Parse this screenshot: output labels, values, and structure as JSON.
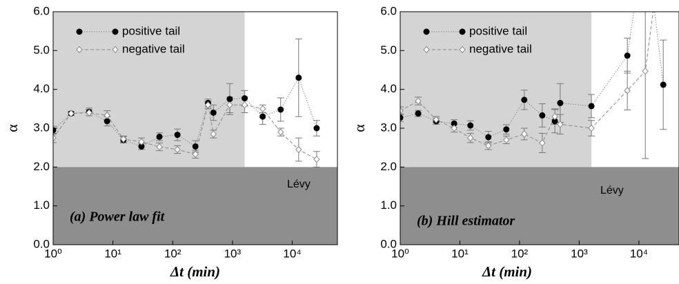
{
  "chart_data": [
    {
      "type": "line",
      "xlabel": "Δt (min)",
      "ylabel": "α",
      "xscale": "log",
      "panel_label": "(a)  Power law fit",
      "region_label": "Lévy",
      "regions": [
        {
          "xlim": [
            1,
            1600
          ],
          "ylim": [
            2,
            6
          ],
          "color": "#d4d4d4"
        },
        {
          "ylim": [
            0,
            2
          ],
          "color": "#8e8e8e"
        }
      ],
      "x": [
        1,
        2,
        4,
        8,
        15,
        30,
        60,
        120,
        240,
        390,
        480,
        900,
        1600,
        3200,
        6400,
        12800,
        25600
      ],
      "series": [
        {
          "name": "positive tail",
          "color": "#000000",
          "marker": "circle",
          "values": [
            2.95,
            3.38,
            3.42,
            3.18,
            2.7,
            2.53,
            2.78,
            2.83,
            2.53,
            3.65,
            3.4,
            3.75,
            3.77,
            3.3,
            3.48,
            4.3,
            3.0
          ],
          "errors": [
            0.1,
            0.05,
            0.1,
            0.12,
            0.08,
            0.08,
            0.1,
            0.15,
            0.15,
            0.1,
            0.2,
            0.4,
            0.2,
            0.2,
            0.3,
            1.0,
            0.2
          ]
        },
        {
          "name": "negative tail",
          "color": "#ffffff",
          "marker": "diamond",
          "values": [
            2.75,
            3.38,
            3.4,
            3.33,
            2.72,
            2.65,
            2.52,
            2.45,
            2.33,
            3.6,
            2.85,
            3.6,
            3.6,
            3.5,
            2.9,
            2.45,
            2.2
          ],
          "errors": [
            0.12,
            0.05,
            0.08,
            0.12,
            0.08,
            0.1,
            0.1,
            0.1,
            0.1,
            0.1,
            0.1,
            0.2,
            0.2,
            0.1,
            0.1,
            0.3,
            0.2
          ]
        }
      ],
      "xlim": [
        1,
        57000
      ],
      "ylim": [
        0,
        6
      ],
      "xticks": [
        {
          "value": 1,
          "label": "10⁰"
        },
        {
          "value": 10,
          "label": "10¹"
        },
        {
          "value": 100,
          "label": "10²"
        },
        {
          "value": 1000,
          "label": "10³"
        },
        {
          "value": 10000,
          "label": "10⁴"
        }
      ],
      "yticks": [
        {
          "value": 0,
          "label": "0.0"
        },
        {
          "value": 1,
          "label": "1.0"
        },
        {
          "value": 2,
          "label": "2.0"
        },
        {
          "value": 3,
          "label": "3.0"
        },
        {
          "value": 4,
          "label": "4.0"
        },
        {
          "value": 5,
          "label": "5.0"
        },
        {
          "value": 6,
          "label": "6.0"
        }
      ],
      "legend": "upper left"
    },
    {
      "type": "line",
      "xlabel": "Δt (min)",
      "ylabel": "α",
      "xscale": "log",
      "panel_label": "(b) Hill estimator",
      "region_label": "Lévy",
      "regions": [
        {
          "xlim": [
            1,
            1600
          ],
          "ylim": [
            2,
            6
          ],
          "color": "#d4d4d4"
        },
        {
          "ylim": [
            0,
            2
          ],
          "color": "#8e8e8e"
        }
      ],
      "x": [
        1,
        2,
        4,
        8,
        15,
        30,
        60,
        120,
        240,
        390,
        480,
        1600,
        6400,
        12800,
        25600
      ],
      "series": [
        {
          "name": "positive tail",
          "color": "#000000",
          "marker": "circle",
          "values": [
            3.27,
            3.38,
            3.18,
            3.12,
            3.07,
            2.77,
            2.97,
            3.73,
            3.33,
            3.18,
            3.65,
            3.57,
            4.87,
            8.0,
            4.12
          ],
          "errors": [
            0.1,
            0.08,
            0.08,
            0.1,
            0.12,
            0.15,
            0.12,
            0.25,
            0.3,
            0.3,
            0.5,
            0.3,
            0.45,
            2.0,
            1.15
          ]
        },
        {
          "name": "negative tail",
          "color": "#ffffff",
          "marker": "diamond",
          "values": [
            3.45,
            3.7,
            3.22,
            3.0,
            2.75,
            2.55,
            2.7,
            2.85,
            2.62,
            3.3,
            3.1,
            3.0,
            3.97,
            4.47,
            8.0
          ],
          "errors": [
            0.1,
            0.1,
            0.08,
            0.1,
            0.12,
            0.1,
            0.1,
            0.15,
            0.25,
            0.2,
            0.25,
            0.2,
            0.5,
            2.25,
            2.0
          ]
        }
      ],
      "xlim": [
        1,
        47000
      ],
      "ylim": [
        0,
        6
      ],
      "xticks": [
        {
          "value": 1,
          "label": "10⁰"
        },
        {
          "value": 10,
          "label": "10¹"
        },
        {
          "value": 100,
          "label": "10²"
        },
        {
          "value": 1000,
          "label": "10³"
        },
        {
          "value": 10000,
          "label": "10⁴"
        }
      ],
      "yticks": [
        {
          "value": 0,
          "label": "0.0"
        },
        {
          "value": 1,
          "label": "1.0"
        },
        {
          "value": 2,
          "label": "2.0"
        },
        {
          "value": 3,
          "label": "3.0"
        },
        {
          "value": 4,
          "label": "4.0"
        },
        {
          "value": 5,
          "label": "5.0"
        },
        {
          "value": 6,
          "label": "6.0"
        }
      ],
      "legend": "upper left"
    }
  ]
}
